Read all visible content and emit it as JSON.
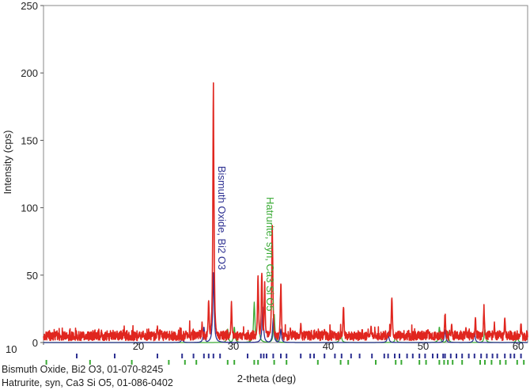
{
  "chart_data": {
    "type": "line",
    "title": "",
    "xlabel": "2-theta (deg)",
    "ylabel": "Intensity (cps)",
    "xlim": [
      10,
      61
    ],
    "ylim": [
      0,
      250
    ],
    "x_ticks": [
      10,
      20,
      30,
      40,
      50,
      60
    ],
    "y_ticks": [
      0,
      50,
      100,
      150,
      200,
      250
    ],
    "grid": false,
    "colors": {
      "measured": "#e0261f",
      "bismuth": "#2e3192",
      "hatrurite": "#3aaa35"
    },
    "series": [
      {
        "color": "#e0261f",
        "baseline": 5,
        "peaks": [
          {
            "x": 20.1,
            "y": 8
          },
          {
            "x": 22.0,
            "y": 12
          },
          {
            "x": 25.0,
            "y": 9
          },
          {
            "x": 26.7,
            "y": 14
          },
          {
            "x": 27.4,
            "y": 32
          },
          {
            "x": 27.9,
            "y": 182
          },
          {
            "x": 29.8,
            "y": 28
          },
          {
            "x": 32.6,
            "y": 50
          },
          {
            "x": 33.0,
            "y": 55
          },
          {
            "x": 33.3,
            "y": 42
          },
          {
            "x": 34.1,
            "y": 90
          },
          {
            "x": 35.0,
            "y": 44
          },
          {
            "x": 36.0,
            "y": 10
          },
          {
            "x": 37.1,
            "y": 14
          },
          {
            "x": 39.6,
            "y": 10
          },
          {
            "x": 41.6,
            "y": 26
          },
          {
            "x": 44.5,
            "y": 12
          },
          {
            "x": 46.7,
            "y": 35
          },
          {
            "x": 50.5,
            "y": 10
          },
          {
            "x": 52.3,
            "y": 22
          },
          {
            "x": 53.0,
            "y": 14
          },
          {
            "x": 54.5,
            "y": 12
          },
          {
            "x": 55.5,
            "y": 18
          },
          {
            "x": 56.4,
            "y": 26
          },
          {
            "x": 57.5,
            "y": 14
          },
          {
            "x": 58.6,
            "y": 18
          },
          {
            "x": 60.3,
            "y": 14
          }
        ]
      },
      {
        "color": "#2e3192",
        "peaks": [
          {
            "x": 24.6,
            "y": 4
          },
          {
            "x": 26.9,
            "y": 12
          },
          {
            "x": 27.9,
            "y": 55
          },
          {
            "x": 33.1,
            "y": 28
          },
          {
            "x": 34.2,
            "y": 18
          },
          {
            "x": 35.0,
            "y": 10
          },
          {
            "x": 46.3,
            "y": 8
          },
          {
            "x": 52.3,
            "y": 10
          },
          {
            "x": 55.4,
            "y": 8
          }
        ]
      },
      {
        "color": "#3aaa35",
        "peaks": [
          {
            "x": 29.4,
            "y": 10
          },
          {
            "x": 30.1,
            "y": 12
          },
          {
            "x": 32.2,
            "y": 30
          },
          {
            "x": 32.6,
            "y": 40
          },
          {
            "x": 34.3,
            "y": 22
          },
          {
            "x": 41.3,
            "y": 10
          },
          {
            "x": 47.1,
            "y": 5
          },
          {
            "x": 51.7,
            "y": 12
          },
          {
            "x": 52.6,
            "y": 8
          },
          {
            "x": 56.5,
            "y": 10
          },
          {
            "x": 59.9,
            "y": 6
          }
        ]
      }
    ],
    "peak_labels": [
      {
        "text": "Bismuth Oxide, Bi2 O3",
        "x": 28.0,
        "y_top": 131,
        "color": "#2e3192"
      },
      {
        "text": "Hatrurite, syn, Ca3 Si O5",
        "x": 33.1,
        "y_top": 108,
        "color": "#3aaa35"
      }
    ],
    "reference_ticks": {
      "bismuth": [
        13.5,
        17.5,
        22.0,
        24.6,
        25.8,
        26.9,
        27.4,
        27.9,
        28.6,
        31.5,
        32.9,
        33.2,
        33.5,
        34.2,
        35.0,
        35.6,
        37.1,
        38.1,
        38.5,
        39.6,
        40.7,
        41.4,
        42.4,
        43.3,
        44.6,
        45.9,
        46.3,
        47.0,
        47.5,
        48.3,
        48.9,
        49.6,
        50.2,
        51.0,
        51.5,
        52.1,
        52.3,
        52.9,
        53.5,
        54.1,
        54.8,
        55.4,
        56.1,
        56.7,
        57.3,
        57.8,
        58.6,
        59.2,
        59.6,
        60.3
      ],
      "hatrurite": [
        10.3,
        14.9,
        19.3,
        23.2,
        24.9,
        26.1,
        29.4,
        30.1,
        32.2,
        32.6,
        34.3,
        35.6,
        38.9,
        41.3,
        42.1,
        45.0,
        47.1,
        47.7,
        49.6,
        50.3,
        51.7,
        52.2,
        52.6,
        53.1,
        54.1,
        56.0,
        56.5,
        57.2,
        58.1,
        58.7,
        59.9,
        60.6
      ]
    },
    "legend": [
      "Bismuth Oxide, Bi2 O3, 01-070-8245",
      "Hatrurite, syn, Ca3 Si O5, 01-086-0402"
    ],
    "legend_placement": "bottom-left"
  }
}
